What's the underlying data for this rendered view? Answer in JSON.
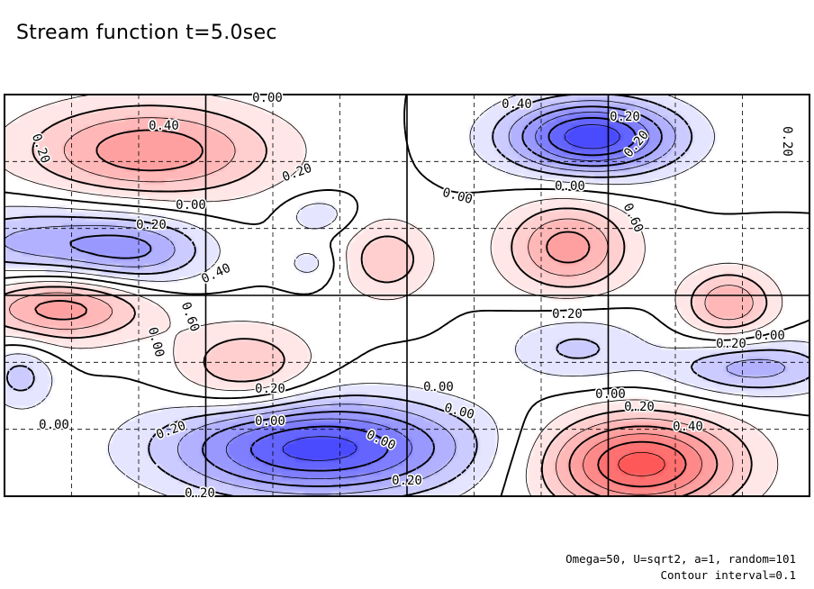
{
  "chart_data": {
    "type": "heatmap",
    "title": "Stream function t=5.0sec",
    "style": "filled contour plot with labeled contour lines; red fill for positive values, blue fill for negative values; negative contours dashed; dashed grid",
    "colors": {
      "positive": "#ff4040",
      "negative": "#3030ff",
      "zero": "#ffffff",
      "line": "#000000"
    },
    "contour_interval": 0.1,
    "grid": true,
    "contour_labels": [
      "0.00",
      "0.40",
      "0.20",
      "0.20",
      "0.20",
      "0.40",
      "0.60",
      "0.00",
      "0.20",
      "0.00",
      "0.00",
      "0.20",
      "0.20",
      "0.00",
      "0.20",
      "0.00",
      "0.00",
      "0.20",
      "0.00",
      "0.20",
      "0.00",
      "0.20",
      "0.00",
      "0.40",
      "0.20",
      "0.00",
      "0.20",
      "0.40",
      "0.60",
      "0.00",
      "0.20"
    ],
    "features": [
      {
        "sign": "positive",
        "amplitude": 0.48,
        "x": 0.18,
        "y": 0.14,
        "sx": 0.11,
        "sy": 0.085
      },
      {
        "sign": "negative",
        "amplitude": 0.78,
        "x": 0.73,
        "y": 0.105,
        "sx": 0.075,
        "sy": 0.065
      },
      {
        "sign": "negative",
        "amplitude": 0.35,
        "x": 0.05,
        "y": 0.37,
        "sx": 0.1,
        "sy": 0.07
      },
      {
        "sign": "negative",
        "amplitude": 0.28,
        "x": 0.17,
        "y": 0.39,
        "sx": 0.06,
        "sy": 0.06
      },
      {
        "sign": "negative",
        "amplitude": 0.18,
        "x": 0.39,
        "y": 0.3,
        "sx": 0.03,
        "sy": 0.035
      },
      {
        "sign": "negative",
        "amplitude": 0.14,
        "x": 0.38,
        "y": 0.42,
        "sx": 0.025,
        "sy": 0.035
      },
      {
        "sign": "positive",
        "amplitude": 0.45,
        "x": 0.7,
        "y": 0.38,
        "sx": 0.055,
        "sy": 0.08
      },
      {
        "sign": "positive",
        "amplitude": 0.28,
        "x": 0.475,
        "y": 0.41,
        "sx": 0.04,
        "sy": 0.07
      },
      {
        "sign": "positive",
        "amplitude": 0.47,
        "x": 0.07,
        "y": 0.53,
        "sx": 0.075,
        "sy": 0.06
      },
      {
        "sign": "positive",
        "amplitude": 0.32,
        "x": 0.3,
        "y": 0.68,
        "sx": 0.06,
        "sy": 0.075
      },
      {
        "sign": "positive",
        "amplitude": 0.4,
        "x": 0.9,
        "y": 0.52,
        "sx": 0.04,
        "sy": 0.06
      },
      {
        "sign": "negative",
        "amplitude": 0.35,
        "x": 0.93,
        "y": 0.68,
        "sx": 0.075,
        "sy": 0.05
      },
      {
        "sign": "negative",
        "amplitude": 0.22,
        "x": 0.71,
        "y": 0.63,
        "sx": 0.06,
        "sy": 0.06
      },
      {
        "sign": "negative",
        "amplitude": 0.24,
        "x": 0.02,
        "y": 0.7,
        "sx": 0.03,
        "sy": 0.06
      },
      {
        "sign": "negative",
        "amplitude": 0.75,
        "x": 0.39,
        "y": 0.88,
        "sx": 0.13,
        "sy": 0.085
      },
      {
        "sign": "positive",
        "amplitude": 0.75,
        "x": 0.79,
        "y": 0.92,
        "sx": 0.085,
        "sy": 0.085
      }
    ]
  },
  "footer": {
    "params": "Omega=50, U=sqrt2, a=1, random=101",
    "interval": "Contour interval=0.1"
  }
}
